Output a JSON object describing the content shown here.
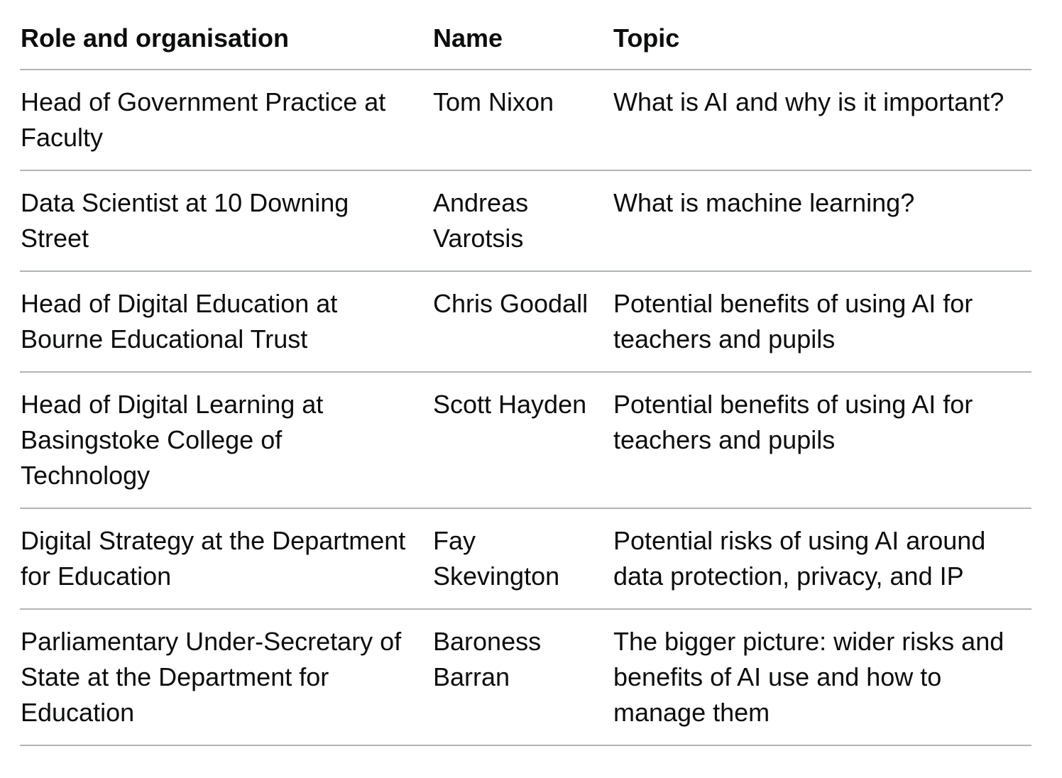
{
  "table": {
    "headers": [
      "Role and organisation",
      "Name",
      "Topic"
    ],
    "rows": [
      [
        "Head of Government Practice at Faculty",
        "Tom Nixon",
        "What is AI and why is it important?"
      ],
      [
        "Data Scientist at 10 Downing Street",
        "Andreas Varotsis",
        "What is machine learning?"
      ],
      [
        "Head of Digital Education at Bourne Educational Trust",
        "Chris Goodall",
        "Potential benefits of using AI for teachers and pupils"
      ],
      [
        "Head of Digital Learning at Basingstoke College of Technology",
        "Scott Hayden",
        "Potential benefits of using AI for teachers and pupils"
      ],
      [
        "Digital Strategy at the Department for Education",
        "Fay Skevington",
        "Potential risks of using AI around data protection, privacy, and IP"
      ],
      [
        "Parliamentary Under-Secretary of State at the Department for Education",
        "Baroness Barran",
        "The bigger picture: wider risks and benefits of AI use and how to manage them"
      ]
    ]
  }
}
